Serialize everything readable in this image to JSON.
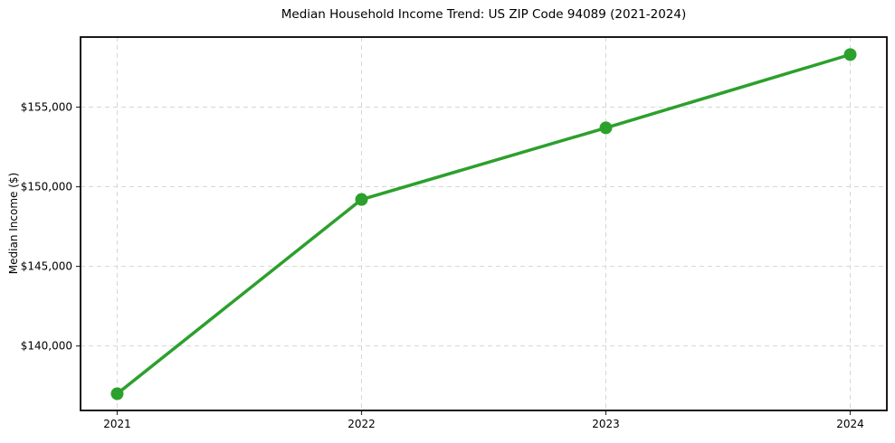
{
  "figure": {
    "background": "#ffffff"
  },
  "chart_data": {
    "type": "line",
    "title": "Median Household Income Trend: US ZIP Code 94089 (2021-2024)",
    "xlabel": "",
    "ylabel": "Median Income ($)",
    "x": [
      2021,
      2022,
      2023,
      2024
    ],
    "x_tick_labels": [
      "2021",
      "2022",
      "2023",
      "2024"
    ],
    "series": [
      {
        "color": "#2ca02c",
        "marker": "circle",
        "values": [
          137000,
          149200,
          153700,
          158300
        ]
      }
    ],
    "y_ticks": [
      {
        "value": 140000,
        "label": "$140,000"
      },
      {
        "value": 145000,
        "label": "$145,000"
      },
      {
        "value": 150000,
        "label": "$150,000"
      },
      {
        "value": 155000,
        "label": "$155,000"
      }
    ],
    "xlim": [
      2020.85,
      2024.15
    ],
    "ylim": [
      135950,
      159400
    ],
    "grid": true,
    "grid_style": "dashed",
    "legend": "none",
    "colors": {
      "line": "#2ca02c",
      "grid": "#d6d6d6",
      "frame": "#000000",
      "tick": "#333333",
      "text": "#000000"
    }
  }
}
